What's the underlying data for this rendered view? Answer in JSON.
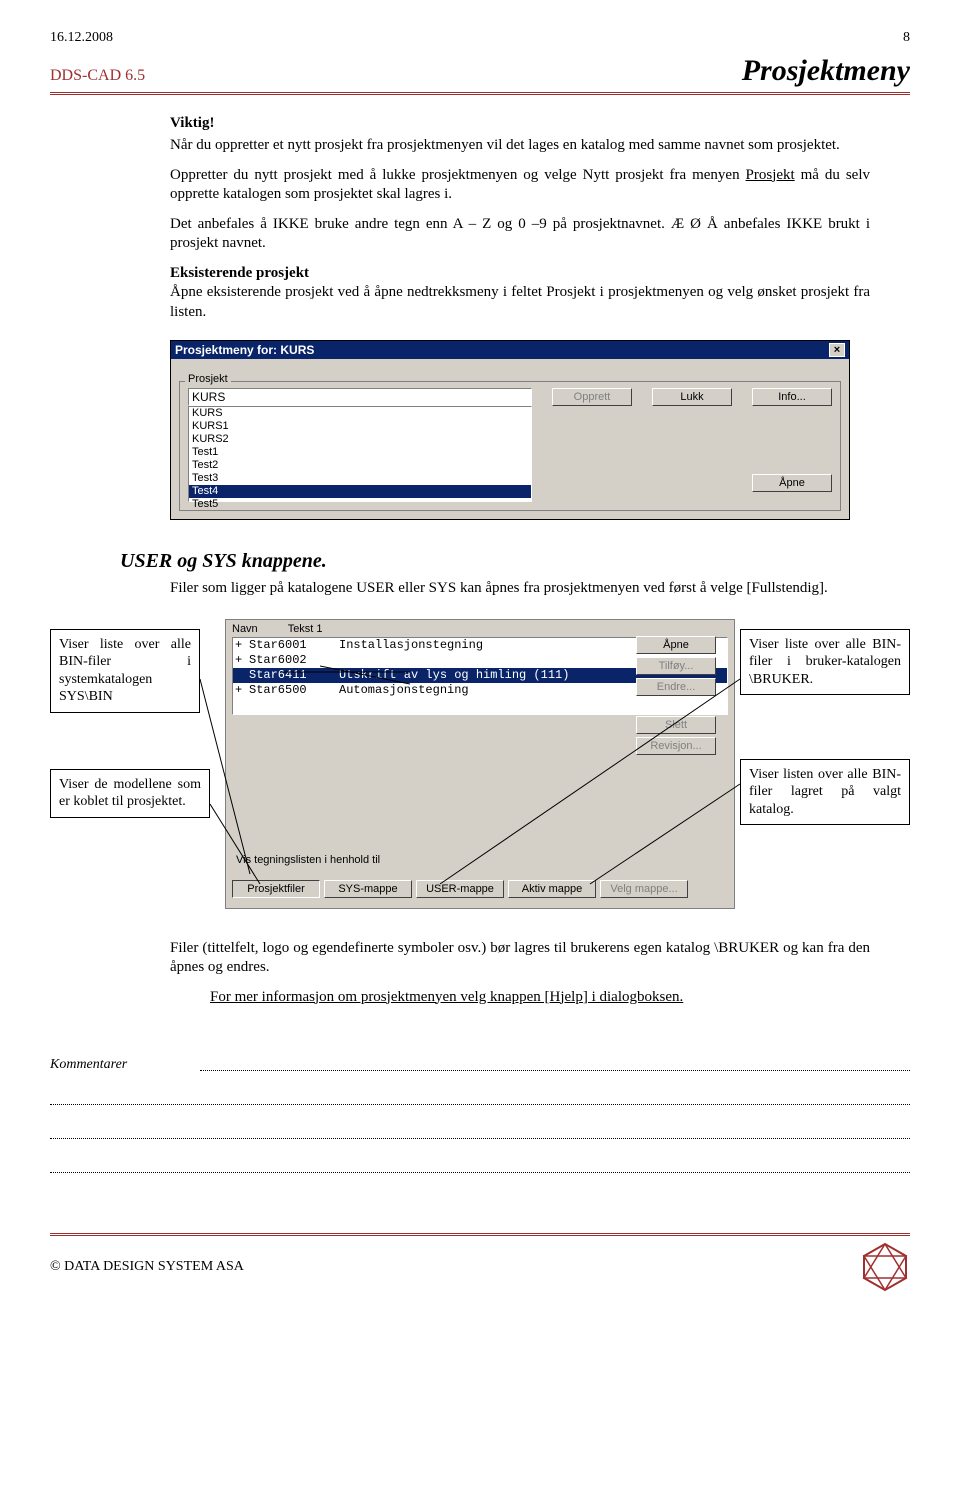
{
  "header": {
    "date": "16.12.2008",
    "page": "8"
  },
  "subhead": {
    "dds": "DDS-CAD 6.5",
    "title": "Prosjektmeny"
  },
  "body": {
    "viktig": "Viktig!",
    "p1": "Når du oppretter et nytt prosjekt fra prosjektmenyen vil det lages en katalog med samme navnet som prosjektet.",
    "p2a": "Oppretter du nytt prosjekt med å lukke prosjektmenyen og velge Nytt prosjekt fra menyen ",
    "p2b": "Prosjekt",
    "p2c": " må du selv opprette katalogen som prosjektet skal lagres i.",
    "p3": "Det anbefales å IKKE bruke andre tegn enn A – Z og 0 –9 på prosjektnavnet. Æ Ø Å anbefales IKKE brukt i prosjekt navnet.",
    "eksist": "Eksisterende prosjekt",
    "p4": "Åpne eksisterende prosjekt ved å åpne nedtrekksmeny i feltet Prosjekt i prosjektmenyen og velg ønsket prosjekt fra listen."
  },
  "shot1": {
    "title": "Prosjektmeny for: KURS",
    "fieldset": "Prosjekt",
    "input_value": "KURS",
    "items": [
      "KURS",
      "KURS1",
      "KURS2",
      "Test1",
      "Test2",
      "Test3",
      "Test4",
      "Test5"
    ],
    "selected_index": 6,
    "btn_opprett": "Opprett",
    "btn_lukk": "Lukk",
    "btn_info": "Info...",
    "btn_apne": "Åpne"
  },
  "section2": {
    "head": "USER og SYS knappene.",
    "intro": "Filer som ligger på katalogene USER eller SYS kan åpnes fra prosjektmenyen ved først å velge [Fullstendig]."
  },
  "callouts": {
    "left1": "Viser liste over alle BIN-filer i systemkatalogen SYS\\BIN",
    "left2": "Viser de modellene som er koblet til prosjektet.",
    "right1": "Viser liste over alle BIN-filer i bruker-katalogen \\BRUKER.",
    "right2": "Viser listen over alle BIN-filer lagret på valgt katalog."
  },
  "shot2": {
    "col_navn": "Navn",
    "col_tekst": "Tekst 1",
    "rows": [
      {
        "plus": "+",
        "name": "Star6001",
        "text": "Installasjonstegning"
      },
      {
        "plus": "+",
        "name": "Star6002",
        "text": ""
      },
      {
        "plus": "",
        "name": "Star6411",
        "text": "Utskrift av lys og himling (111)"
      },
      {
        "plus": "+",
        "name": "Star6500",
        "text": "Automasjonstegning"
      }
    ],
    "selected_row": 2,
    "btns_right": [
      "Åpne",
      "Tilføy...",
      "Endre...",
      "Slett",
      "Revisjon..."
    ],
    "label": "Vis tegningslisten i henhold til",
    "btns_bottom": [
      "Prosjektfiler",
      "SYS-mappe",
      "USER-mappe",
      "Aktiv mappe",
      "Velg mappe..."
    ]
  },
  "after": {
    "p5": "Filer (tittelfelt, logo og egendefinerte symboler osv.) bør lagres til brukerens egen katalog \\BRUKER og kan fra den åpnes og endres.",
    "p6": "For mer informasjon om prosjektmenyen velg knappen [Hjelp] i dialogboksen."
  },
  "kommentarer": "Kommentarer",
  "footer": "© DATA DESIGN SYSTEM ASA"
}
